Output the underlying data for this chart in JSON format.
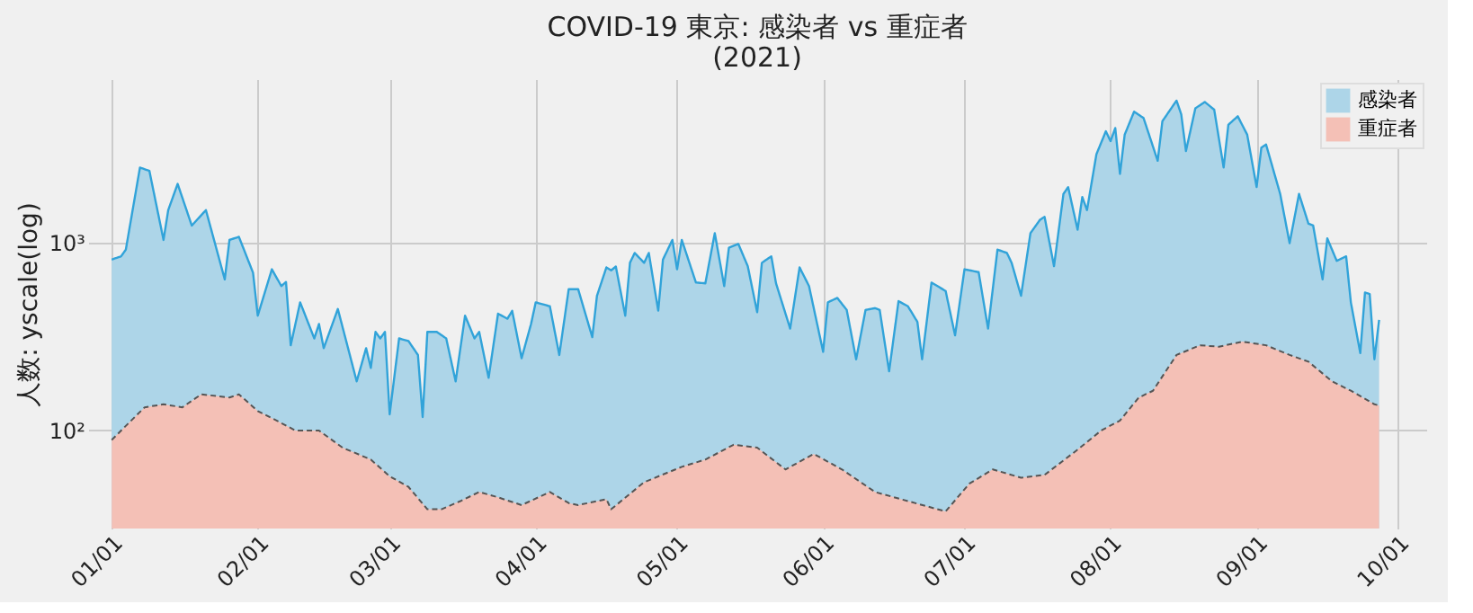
{
  "chart_data": {
    "type": "area",
    "title": "COVID-19 東京: 感染者 vs 重症者\n(2021)",
    "ylabel": "人数: yscale(log)",
    "log": "y",
    "grid": true,
    "legend": "top right",
    "xlim": [
      "2020-12-27",
      "2021-10-07"
    ],
    "xticks": [
      {
        "value": "2021-01-01",
        "label": "01/01"
      },
      {
        "value": "2021-02-01",
        "label": "02/01"
      },
      {
        "value": "2021-03-01",
        "label": "03/01"
      },
      {
        "value": "2021-04-01",
        "label": "04/01"
      },
      {
        "value": "2021-05-01",
        "label": "05/01"
      },
      {
        "value": "2021-06-01",
        "label": "06/01"
      },
      {
        "value": "2021-07-01",
        "label": "07/01"
      },
      {
        "value": "2021-08-01",
        "label": "08/01"
      },
      {
        "value": "2021-09-01",
        "label": "09/01"
      },
      {
        "value": "2021-10-01",
        "label": "10/01"
      }
    ],
    "ylim": [
      30,
      7500
    ],
    "yticks": [
      {
        "value": 100,
        "label": "10²"
      },
      {
        "value": 1000,
        "label": "10³"
      }
    ],
    "series": [
      {
        "name": "感染者",
        "color": "#add5e8",
        "line_style": "solid",
        "x": [
          "2021-01-01",
          "2021-01-03",
          "2021-01-04",
          "2021-01-07",
          "2021-01-09",
          "2021-01-12",
          "2021-01-13",
          "2021-01-15",
          "2021-01-18",
          "2021-01-21",
          "2021-01-25",
          "2021-01-26",
          "2021-01-28",
          "2021-01-31",
          "2021-02-01",
          "2021-02-04",
          "2021-02-06",
          "2021-02-07",
          "2021-02-08",
          "2021-02-10",
          "2021-02-13",
          "2021-02-14",
          "2021-02-15",
          "2021-02-18",
          "2021-02-22",
          "2021-02-24",
          "2021-02-25",
          "2021-02-26",
          "2021-02-27",
          "2021-02-28",
          "2021-03-01",
          "2021-03-03",
          "2021-03-05",
          "2021-03-07",
          "2021-03-08",
          "2021-03-09",
          "2021-03-11",
          "2021-03-13",
          "2021-03-15",
          "2021-03-17",
          "2021-03-19",
          "2021-03-20",
          "2021-03-22",
          "2021-03-24",
          "2021-03-26",
          "2021-03-27",
          "2021-03-29",
          "2021-03-31",
          "2021-04-01",
          "2021-04-04",
          "2021-04-06",
          "2021-04-08",
          "2021-04-10",
          "2021-04-13",
          "2021-04-14",
          "2021-04-16",
          "2021-04-17",
          "2021-04-18",
          "2021-04-20",
          "2021-04-21",
          "2021-04-22",
          "2021-04-24",
          "2021-04-25",
          "2021-04-27",
          "2021-04-28",
          "2021-04-30",
          "2021-05-01",
          "2021-05-02",
          "2021-05-05",
          "2021-05-07",
          "2021-05-09",
          "2021-05-11",
          "2021-05-12",
          "2021-05-14",
          "2021-05-16",
          "2021-05-18",
          "2021-05-19",
          "2021-05-21",
          "2021-05-22",
          "2021-05-25",
          "2021-05-27",
          "2021-05-29",
          "2021-06-01",
          "2021-06-02",
          "2021-06-04",
          "2021-06-06",
          "2021-06-08",
          "2021-06-10",
          "2021-06-12",
          "2021-06-13",
          "2021-06-15",
          "2021-06-17",
          "2021-06-19",
          "2021-06-21",
          "2021-06-22",
          "2021-06-24",
          "2021-06-27",
          "2021-06-29",
          "2021-07-01",
          "2021-07-04",
          "2021-07-06",
          "2021-07-08",
          "2021-07-10",
          "2021-07-11",
          "2021-07-13",
          "2021-07-15",
          "2021-07-17",
          "2021-07-18",
          "2021-07-20",
          "2021-07-22",
          "2021-07-23",
          "2021-07-25",
          "2021-07-26",
          "2021-07-27",
          "2021-07-29",
          "2021-07-31",
          "2021-08-01",
          "2021-08-02",
          "2021-08-03",
          "2021-08-04",
          "2021-08-06",
          "2021-08-08",
          "2021-08-11",
          "2021-08-12",
          "2021-08-15",
          "2021-08-16",
          "2021-08-17",
          "2021-08-19",
          "2021-08-21",
          "2021-08-23",
          "2021-08-25",
          "2021-08-26",
          "2021-08-28",
          "2021-08-30",
          "2021-09-01",
          "2021-09-02",
          "2021-09-03",
          "2021-09-06",
          "2021-09-08",
          "2021-09-10",
          "2021-09-12",
          "2021-09-13",
          "2021-09-15",
          "2021-09-16",
          "2021-09-18",
          "2021-09-20",
          "2021-09-21",
          "2021-09-23",
          "2021-09-24",
          "2021-09-25",
          "2021-09-26",
          "2021-09-27"
        ],
        "values": [
          817,
          850,
          923,
          2530,
          2430,
          1040,
          1500,
          2070,
          1240,
          1500,
          640,
          1040,
          1080,
          695,
          410,
          725,
          590,
          620,
          285,
          483,
          310,
          370,
          275,
          445,
          183,
          275,
          216,
          336,
          310,
          336,
          122,
          310,
          300,
          253,
          118,
          336,
          336,
          310,
          183,
          410,
          310,
          336,
          191,
          420,
          395,
          435,
          243,
          370,
          483,
          460,
          253,
          568,
          568,
          315,
          524,
          742,
          715,
          750,
          410,
          785,
          886,
          785,
          886,
          436,
          817,
          1040,
          725,
          1040,
          616,
          610,
          1130,
          590,
          945,
          990,
          753,
          428,
          785,
          850,
          610,
          350,
          742,
          590,
          263,
          483,
          510,
          440,
          240,
          440,
          450,
          440,
          207,
          490,
          460,
          380,
          240,
          616,
          555,
          322,
          725,
          700,
          350,
          923,
          886,
          785,
          524,
          1130,
          1330,
          1380,
          753,
          1830,
          1990,
          1180,
          1760,
          1500,
          2980,
          3950,
          3500,
          4110,
          2340,
          3790,
          5030,
          4650,
          2750,
          4470,
          5760,
          4870,
          3100,
          5240,
          5660,
          5150,
          2530,
          4280,
          4750,
          3790,
          1990,
          3230,
          3360,
          1830,
          1000,
          1830,
          1270,
          1240,
          640,
          1060,
          804,
          850,
          483,
          259,
          545,
          535,
          240,
          389
        ]
      },
      {
        "name": "重症者",
        "color": "#f4c0b6",
        "line_style": "dashed",
        "x": [
          "2021-01-01",
          "2021-01-03",
          "2021-01-08",
          "2021-01-12",
          "2021-01-16",
          "2021-01-20",
          "2021-01-26",
          "2021-01-28",
          "2021-02-01",
          "2021-02-05",
          "2021-02-09",
          "2021-02-14",
          "2021-02-19",
          "2021-02-25",
          "2021-03-01",
          "2021-03-05",
          "2021-03-09",
          "2021-03-12",
          "2021-03-16",
          "2021-03-20",
          "2021-03-24",
          "2021-03-29",
          "2021-04-04",
          "2021-04-08",
          "2021-04-10",
          "2021-04-16",
          "2021-04-17",
          "2021-04-24",
          "2021-05-02",
          "2021-05-07",
          "2021-05-13",
          "2021-05-18",
          "2021-05-24",
          "2021-05-30",
          "2021-06-05",
          "2021-06-12",
          "2021-06-19",
          "2021-06-27",
          "2021-07-02",
          "2021-07-07",
          "2021-07-13",
          "2021-07-18",
          "2021-07-25",
          "2021-07-30",
          "2021-08-03",
          "2021-08-07",
          "2021-08-10",
          "2021-08-15",
          "2021-08-20",
          "2021-08-24",
          "2021-08-29",
          "2021-09-03",
          "2021-09-08",
          "2021-09-12",
          "2021-09-17",
          "2021-09-21",
          "2021-09-26",
          "2021-09-27"
        ],
        "values": [
          89,
          100,
          133,
          138,
          133,
          156,
          150,
          156,
          127,
          113,
          100,
          100,
          81,
          70,
          57,
          50,
          38,
          38,
          42,
          47,
          44,
          40,
          47,
          41,
          40,
          43,
          38,
          53,
          64,
          70,
          84,
          81,
          62,
          75,
          62,
          47,
          42,
          37,
          52,
          62,
          56,
          58,
          79,
          100,
          113,
          150,
          163,
          253,
          285,
          280,
          298,
          285,
          253,
          233,
          183,
          163,
          138,
          136
        ]
      }
    ]
  }
}
